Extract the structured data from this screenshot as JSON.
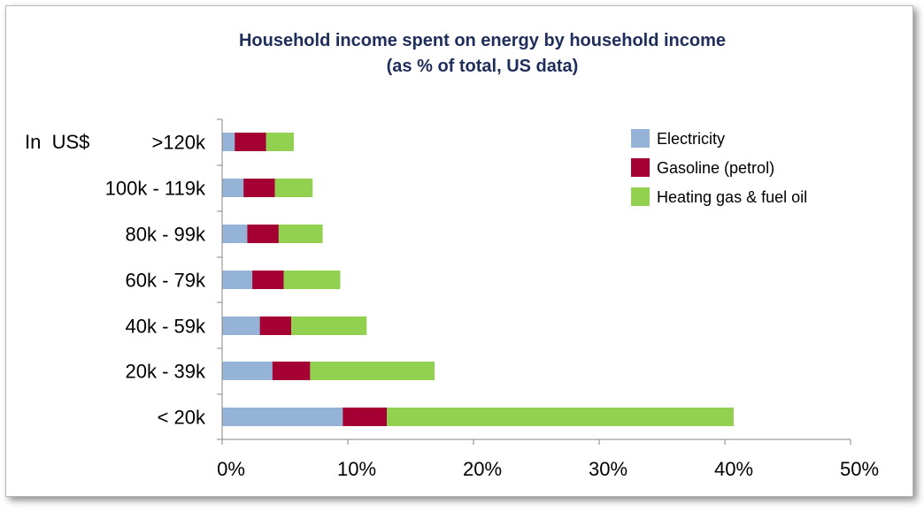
{
  "chart_data": {
    "type": "bar",
    "orientation": "horizontal",
    "stacked": true,
    "title": "Household income spent on energy by household income",
    "subtitle": "(as % of total, US data)",
    "ylabel": "In  US$",
    "xlabel": "",
    "categories": [
      ">120k",
      "100k - 119k",
      "80k - 99k",
      "60k - 79k",
      "40k - 59k",
      "20k - 39k",
      "< 20k"
    ],
    "series": [
      {
        "name": "Electricity",
        "color": "#95b3d7",
        "values": [
          1.0,
          1.7,
          2.0,
          2.4,
          3.0,
          4.0,
          9.6
        ]
      },
      {
        "name": "Gasoline (petrol)",
        "color": "#a50034",
        "values": [
          2.5,
          2.5,
          2.5,
          2.5,
          2.5,
          3.0,
          3.5
        ]
      },
      {
        "name": "Heating gas & fuel oil",
        "color": "#92d050",
        "values": [
          2.2,
          3.0,
          3.5,
          4.5,
          6.0,
          9.9,
          27.6
        ]
      }
    ],
    "xlim": [
      0,
      50
    ],
    "xticks": [
      0,
      10,
      20,
      30,
      40,
      50
    ],
    "xtick_labels": [
      "0%",
      "10%",
      "20%",
      "30%",
      "40%",
      "50%"
    ],
    "grid": false,
    "legend_position": "top-right"
  }
}
